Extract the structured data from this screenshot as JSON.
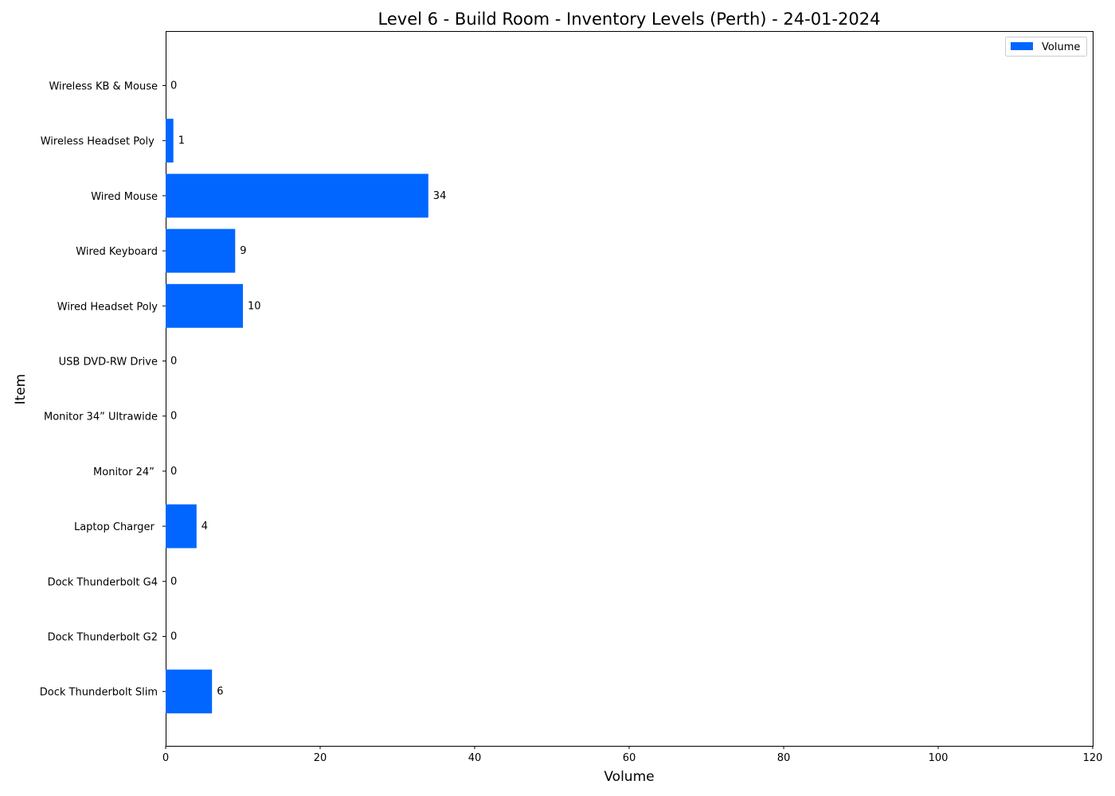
{
  "chart_data": {
    "type": "bar",
    "orientation": "horizontal",
    "title": "Level 6 - Build Room - Inventory Levels (Perth) - 24-01-2024",
    "xlabel": "Volume",
    "ylabel": "Item",
    "xlim": [
      0,
      120
    ],
    "x_ticks": [
      "0",
      "20",
      "40",
      "60",
      "80",
      "100",
      "120"
    ],
    "grid": false,
    "legend_position": "top-right",
    "bar_color": "#0066ff",
    "series": [
      {
        "name": "Volume",
        "values": [
          0,
          1,
          34,
          9,
          10,
          0,
          0,
          0,
          4,
          0,
          0,
          6
        ]
      }
    ],
    "categories": [
      "Wireless KB & Mouse",
      "Wireless Headset Poly ",
      "Wired Mouse",
      "Wired Keyboard",
      "Wired Headset Poly",
      "USB DVD-RW Drive",
      "Monitor 34” Ultrawide",
      "Monitor 24” ",
      "Laptop Charger ",
      "Dock Thunderbolt G4",
      "Dock Thunderbolt G2",
      "Dock Thunderbolt Slim"
    ],
    "data_labels": [
      "0",
      "1",
      "34",
      "9",
      "10",
      "0",
      "0",
      "0",
      "4",
      "0",
      "0",
      "6"
    ]
  }
}
